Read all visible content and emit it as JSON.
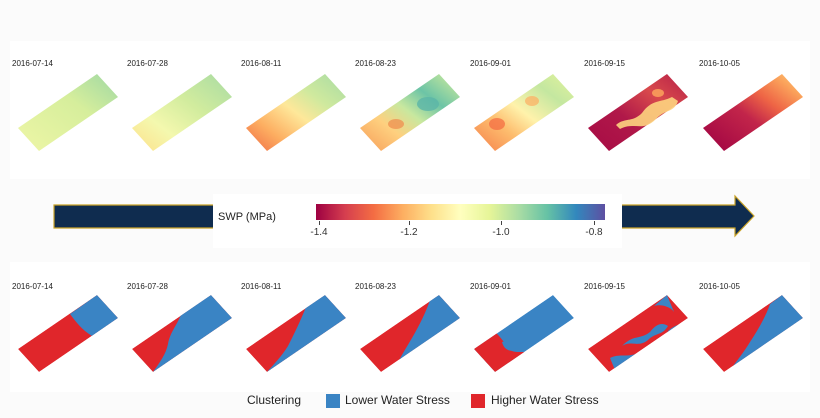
{
  "dates": [
    "2016-07-14",
    "2016-07-28",
    "2016-08-11",
    "2016-08-23",
    "2016-09-01",
    "2016-09-15",
    "2016-10-05"
  ],
  "colorbar": {
    "title": "SWP (MPa)",
    "ticks": [
      "-1.4",
      "-1.2",
      "-1.0",
      "-0.8"
    ],
    "tick_values": [
      -1.4,
      -1.2,
      -1.0,
      -0.8
    ],
    "range": [
      -1.5,
      -0.75
    ],
    "palette": "Spectral"
  },
  "legend": {
    "title": "Clustering",
    "items": [
      {
        "label": "Lower Water Stress",
        "color": "#3a84c4"
      },
      {
        "label": "Higher Water Stress",
        "color": "#e0262b"
      }
    ]
  },
  "colors": {
    "arrow": "#0f2c4f",
    "arrow_outline": "#c9a227",
    "swp_low": "#9e0142",
    "swp_mid": "#ffffbf",
    "swp_high": "#5e4fa2"
  }
}
